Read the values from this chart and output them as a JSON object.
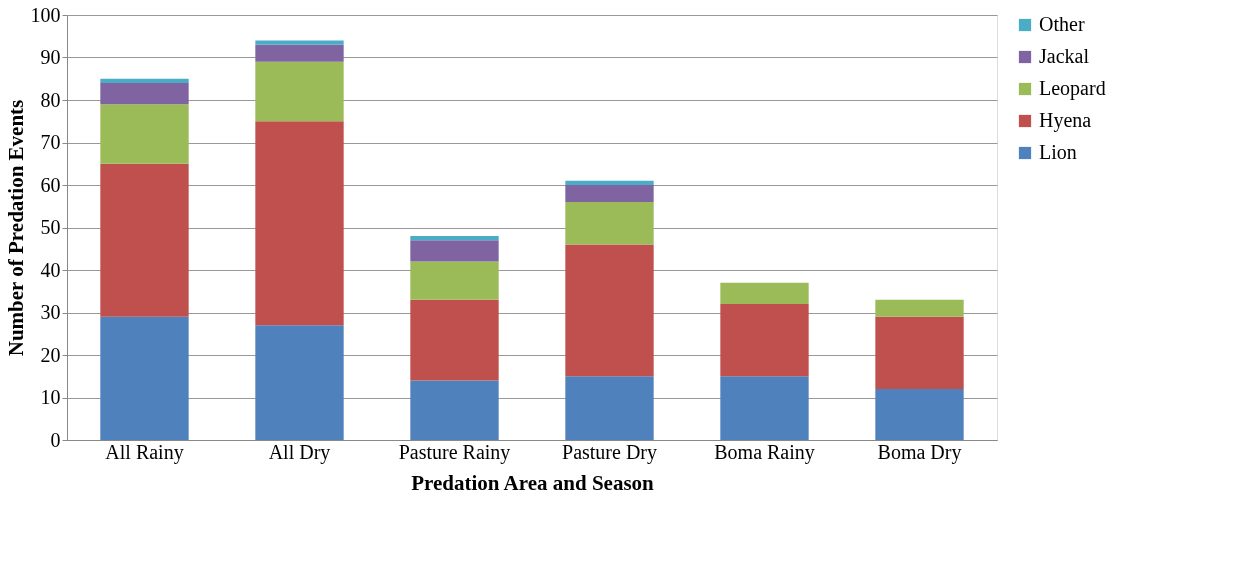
{
  "chart_data": {
    "type": "bar",
    "stacked": true,
    "xlabel": "Predation Area and Season",
    "ylabel": "Number of Predation Events",
    "categories": [
      "All Rainy",
      "All Dry",
      "Pasture Rainy",
      "Pasture Dry",
      "Boma Rainy",
      "Boma Dry"
    ],
    "series": [
      {
        "name": "Lion",
        "color": "#4f81bd",
        "values": [
          29,
          27,
          14,
          15,
          15,
          12
        ]
      },
      {
        "name": "Hyena",
        "color": "#c0504d",
        "values": [
          36,
          48,
          19,
          31,
          17,
          17
        ]
      },
      {
        "name": "Leopard",
        "color": "#9bbb59",
        "values": [
          14,
          14,
          9,
          10,
          5,
          4
        ]
      },
      {
        "name": "Jackal",
        "color": "#8064a2",
        "values": [
          5,
          4,
          5,
          4,
          0,
          0
        ]
      },
      {
        "name": "Other",
        "color": "#4bacc6",
        "values": [
          1,
          1,
          1,
          1,
          0,
          0
        ]
      }
    ],
    "ylim": [
      0,
      100
    ],
    "yticks": [
      0,
      10,
      20,
      30,
      40,
      50,
      60,
      70,
      80,
      90,
      100
    ],
    "grid": "y",
    "legend": "right"
  }
}
